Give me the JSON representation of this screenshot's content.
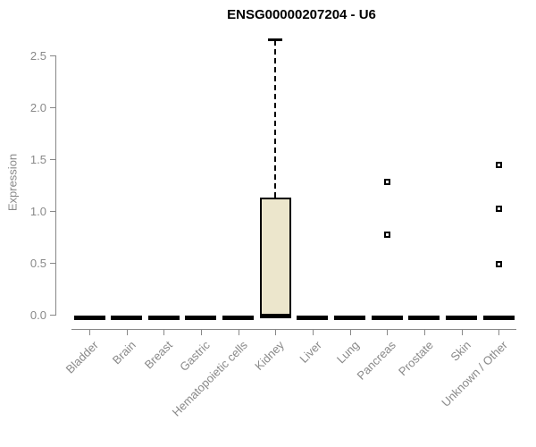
{
  "chart_data": {
    "type": "boxplot",
    "title": "ENSG00000207204 - U6",
    "ylabel": "Expression",
    "xlabel": "",
    "ylim": [
      0.0,
      2.5
    ],
    "ytick_labels": [
      "0.0",
      "0.5",
      "1.0",
      "1.5",
      "2.0",
      "2.5"
    ],
    "ytick_values": [
      0.0,
      0.5,
      1.0,
      1.5,
      2.0,
      2.5
    ],
    "grid": false,
    "legend": "none",
    "categories": [
      "Bladder",
      "Brain",
      "Breast",
      "Gastric",
      "Hematopoietic cells",
      "Kidney",
      "Liver",
      "Lung",
      "Pancreas",
      "Prostate",
      "Skin",
      "Unknown / Other"
    ],
    "boxes": [
      {
        "category": "Bladder",
        "q1": 0.0,
        "median": 0.0,
        "q3": 0.0,
        "whisker_low": 0.0,
        "whisker_high": 0.0,
        "outliers": []
      },
      {
        "category": "Brain",
        "q1": 0.0,
        "median": 0.0,
        "q3": 0.0,
        "whisker_low": 0.0,
        "whisker_high": 0.0,
        "outliers": []
      },
      {
        "category": "Breast",
        "q1": 0.0,
        "median": 0.0,
        "q3": 0.0,
        "whisker_low": 0.0,
        "whisker_high": 0.0,
        "outliers": []
      },
      {
        "category": "Gastric",
        "q1": 0.0,
        "median": 0.0,
        "q3": 0.0,
        "whisker_low": 0.0,
        "whisker_high": 0.0,
        "outliers": []
      },
      {
        "category": "Hematopoietic cells",
        "q1": 0.0,
        "median": 0.0,
        "q3": 0.0,
        "whisker_low": 0.0,
        "whisker_high": 0.0,
        "outliers": []
      },
      {
        "category": "Kidney",
        "q1": 0.0,
        "median": 0.02,
        "q3": 1.13,
        "whisker_low": 0.0,
        "whisker_high": 2.65,
        "outliers": []
      },
      {
        "category": "Liver",
        "q1": 0.0,
        "median": 0.0,
        "q3": 0.0,
        "whisker_low": 0.0,
        "whisker_high": 0.0,
        "outliers": []
      },
      {
        "category": "Lung",
        "q1": 0.0,
        "median": 0.0,
        "q3": 0.0,
        "whisker_low": 0.0,
        "whisker_high": 0.0,
        "outliers": []
      },
      {
        "category": "Pancreas",
        "q1": 0.0,
        "median": 0.0,
        "q3": 0.0,
        "whisker_low": 0.0,
        "whisker_high": 0.0,
        "outliers": [
          1.28,
          0.77
        ]
      },
      {
        "category": "Prostate",
        "q1": 0.0,
        "median": 0.0,
        "q3": 0.0,
        "whisker_low": 0.0,
        "whisker_high": 0.0,
        "outliers": []
      },
      {
        "category": "Skin",
        "q1": 0.0,
        "median": 0.0,
        "q3": 0.0,
        "whisker_low": 0.0,
        "whisker_high": 0.0,
        "outliers": []
      },
      {
        "category": "Unknown / Other",
        "q1": 0.0,
        "median": 0.0,
        "q3": 0.0,
        "whisker_low": 0.0,
        "whisker_high": 0.0,
        "outliers": [
          1.44,
          1.02,
          0.49
        ]
      }
    ],
    "colors": {
      "box_fill": "#ece6cc",
      "box_stroke": "#000000",
      "median": "#000000",
      "whisker": "#000000",
      "outlier_fill": "#ffffff",
      "outlier_stroke": "#000000",
      "axis": "#888888",
      "tick_text": "#898989",
      "title_text": "#000000",
      "background": "#ffffff"
    }
  }
}
